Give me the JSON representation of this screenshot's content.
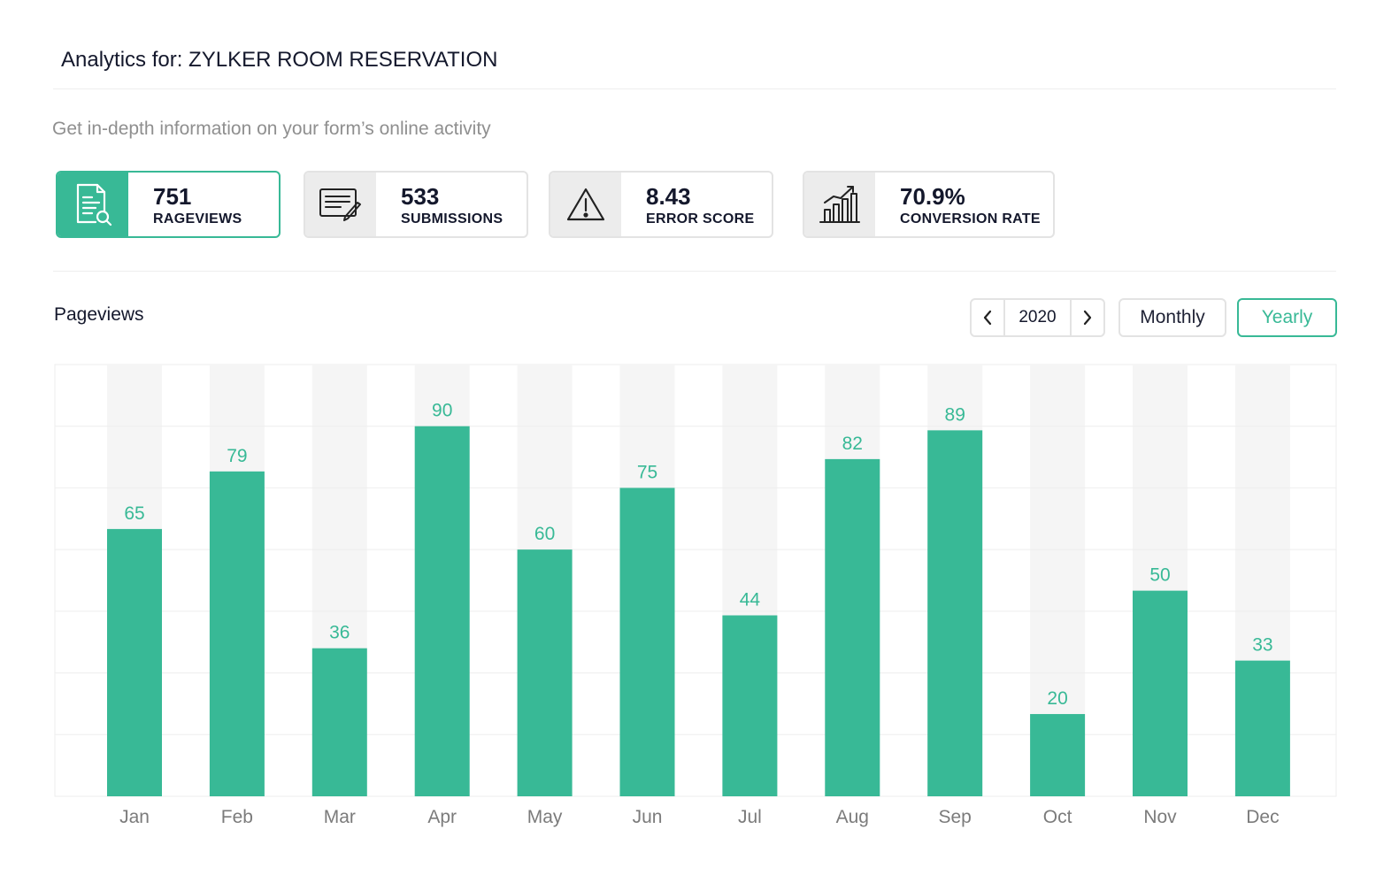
{
  "header": {
    "title": "Analytics for: ZYLKER ROOM RESERVATION",
    "subtitle": "Get in-depth information on your form’s online activity"
  },
  "stats": [
    {
      "value": "751",
      "label": "RAGEVIEWS",
      "icon": "document-search-icon",
      "active": true
    },
    {
      "value": "533",
      "label": "SUBMISSIONS",
      "icon": "form-edit-icon",
      "active": false
    },
    {
      "value": "8.43",
      "label": "ERROR SCORE",
      "icon": "warning-icon",
      "active": false
    },
    {
      "value": "70.9%",
      "label": "CONVERSION RATE",
      "icon": "growth-chart-icon",
      "active": false
    }
  ],
  "section": {
    "title": "Pageviews",
    "year": "2020",
    "toggle_monthly": "Monthly",
    "toggle_yearly": "Yearly",
    "selected_view": "Yearly"
  },
  "colors": {
    "accent": "#38b996",
    "track": "#f5f5f5",
    "grid": "#eeeeee"
  },
  "chart_data": {
    "type": "bar",
    "categories": [
      "Jan",
      "Feb",
      "Mar",
      "Apr",
      "May",
      "Jun",
      "Jul",
      "Aug",
      "Sep",
      "Oct",
      "Nov",
      "Dec"
    ],
    "values": [
      65,
      79,
      36,
      90,
      60,
      75,
      44,
      82,
      89,
      20,
      50,
      33
    ],
    "ylim": [
      0,
      105
    ],
    "grid": true,
    "data_labels": true
  }
}
